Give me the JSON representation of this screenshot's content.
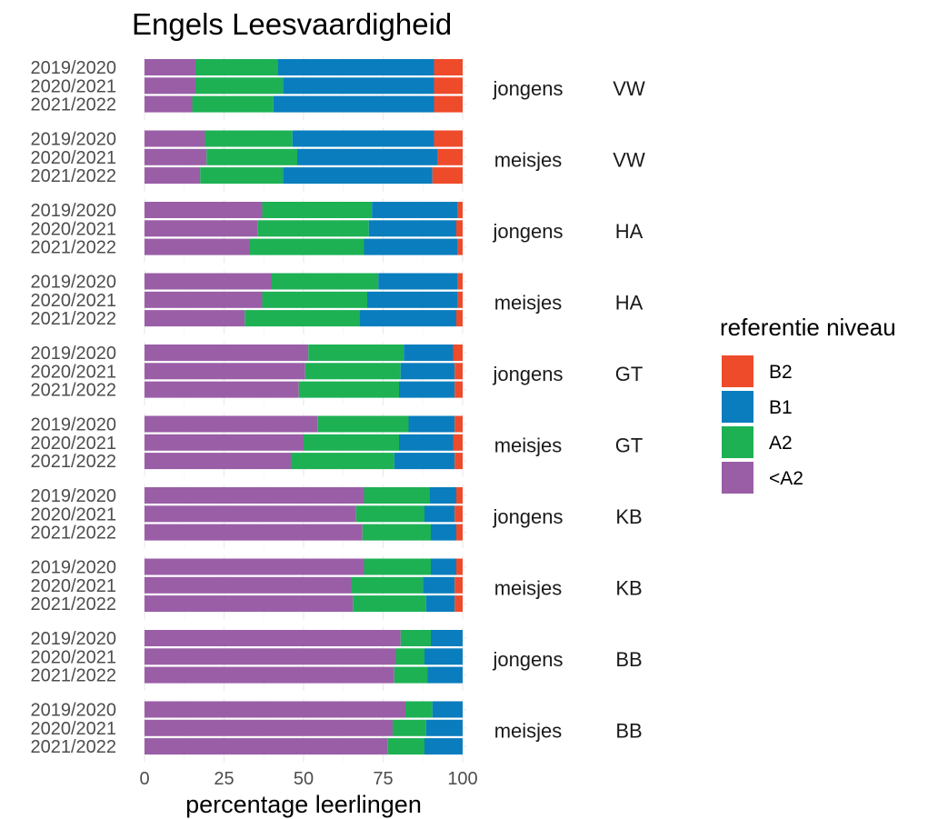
{
  "chart_data": {
    "type": "bar",
    "orientation": "horizontal",
    "stacked": true,
    "title": "Engels Leesvaardigheid",
    "xlabel": "percentage leerlingen",
    "ylabel": "",
    "xlim": [
      0,
      100
    ],
    "xticks": [
      "0",
      "25",
      "50",
      "75",
      "100"
    ],
    "grid": true,
    "legend": {
      "title": "referentie niveau",
      "placement": "right",
      "entries": [
        {
          "label": "B2",
          "color": "#EE4B2B"
        },
        {
          "label": "B1",
          "color": "#0A7DBE"
        },
        {
          "label": "A2",
          "color": "#1DB154"
        },
        {
          "label": "<A2",
          "color": "#9A5EA7"
        }
      ]
    },
    "stack_order": [
      "<A2",
      "A2",
      "B1",
      "B2"
    ],
    "colors": {
      "<A2": "#9A5EA7",
      "A2": "#1DB154",
      "B1": "#0A7DBE",
      "B2": "#EE4B2B"
    },
    "panels": [
      {
        "gender": "jongens",
        "level": "VW",
        "rows": [
          {
            "year": "2019/2020",
            "values": [
              16,
              26,
              49,
              9
            ]
          },
          {
            "year": "2020/2021",
            "values": [
              16,
              27.5,
              47.5,
              9
            ]
          },
          {
            "year": "2021/2022",
            "values": [
              15,
              25.5,
              50.5,
              9
            ]
          }
        ]
      },
      {
        "gender": "meisjes",
        "level": "VW",
        "rows": [
          {
            "year": "2019/2020",
            "values": [
              19,
              27.5,
              44.5,
              9
            ]
          },
          {
            "year": "2020/2021",
            "values": [
              19.5,
              28.5,
              44,
              8
            ]
          },
          {
            "year": "2021/2022",
            "values": [
              17.5,
              26,
              47,
              9.5
            ]
          }
        ]
      },
      {
        "gender": "jongens",
        "level": "HA",
        "rows": [
          {
            "year": "2019/2020",
            "values": [
              37,
              34.5,
              27,
              1.5
            ]
          },
          {
            "year": "2020/2021",
            "values": [
              35.5,
              35,
              27.5,
              2
            ]
          },
          {
            "year": "2021/2022",
            "values": [
              33,
              36,
              29.5,
              1.5
            ]
          }
        ]
      },
      {
        "gender": "meisjes",
        "level": "HA",
        "rows": [
          {
            "year": "2019/2020",
            "values": [
              40,
              33.5,
              25,
              1.5
            ]
          },
          {
            "year": "2020/2021",
            "values": [
              37,
              33,
              28.5,
              1.5
            ]
          },
          {
            "year": "2021/2022",
            "values": [
              31.5,
              36,
              30.5,
              2
            ]
          }
        ]
      },
      {
        "gender": "jongens",
        "level": "GT",
        "rows": [
          {
            "year": "2019/2020",
            "values": [
              51.5,
              30,
              15.5,
              3
            ]
          },
          {
            "year": "2020/2021",
            "values": [
              50.5,
              30,
              17,
              2.5
            ]
          },
          {
            "year": "2021/2022",
            "values": [
              48.5,
              31.5,
              17.5,
              2.5
            ]
          }
        ]
      },
      {
        "gender": "meisjes",
        "level": "GT",
        "rows": [
          {
            "year": "2019/2020",
            "values": [
              54.5,
              28.5,
              14.5,
              2.5
            ]
          },
          {
            "year": "2020/2021",
            "values": [
              50,
              30,
              17,
              3
            ]
          },
          {
            "year": "2021/2022",
            "values": [
              46,
              32.5,
              19,
              2.5
            ]
          }
        ]
      },
      {
        "gender": "jongens",
        "level": "KB",
        "rows": [
          {
            "year": "2019/2020",
            "values": [
              69,
              20.5,
              8.5,
              2
            ]
          },
          {
            "year": "2020/2021",
            "values": [
              66.5,
              21.5,
              9.5,
              2.5
            ]
          },
          {
            "year": "2021/2022",
            "values": [
              68.5,
              21.5,
              8,
              2
            ]
          }
        ]
      },
      {
        "gender": "meisjes",
        "level": "KB",
        "rows": [
          {
            "year": "2019/2020",
            "values": [
              69,
              21,
              8,
              2
            ]
          },
          {
            "year": "2020/2021",
            "values": [
              65,
              22.5,
              10,
              2.5
            ]
          },
          {
            "year": "2021/2022",
            "values": [
              65.5,
              23,
              9,
              2.5
            ]
          }
        ]
      },
      {
        "gender": "jongens",
        "level": "BB",
        "rows": [
          {
            "year": "2019/2020",
            "values": [
              80.5,
              9.5,
              10,
              0
            ]
          },
          {
            "year": "2020/2021",
            "values": [
              79,
              9,
              12,
              0
            ]
          },
          {
            "year": "2021/2022",
            "values": [
              78.5,
              10.5,
              11,
              0
            ]
          }
        ]
      },
      {
        "gender": "meisjes",
        "level": "BB",
        "rows": [
          {
            "year": "2019/2020",
            "values": [
              82,
              8.5,
              9.5,
              0
            ]
          },
          {
            "year": "2020/2021",
            "values": [
              78,
              10.5,
              11.5,
              0
            ]
          },
          {
            "year": "2021/2022",
            "values": [
              76.5,
              11.5,
              12,
              0
            ]
          }
        ]
      }
    ]
  }
}
